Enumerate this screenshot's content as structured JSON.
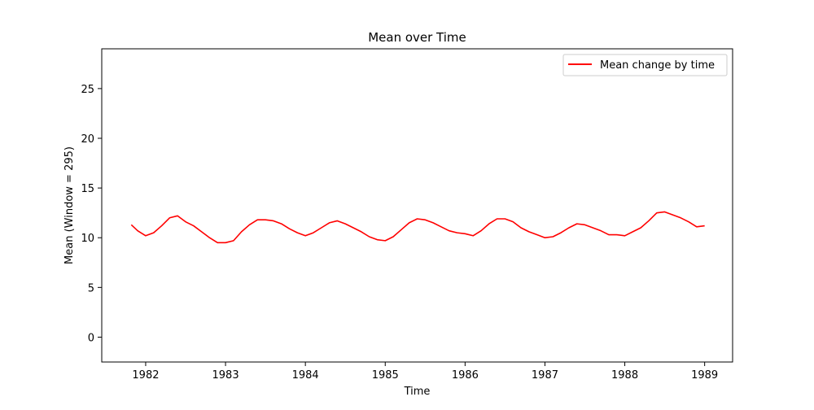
{
  "chart_data": {
    "type": "line",
    "title": "Mean over Time",
    "xlabel": "Time",
    "ylabel": "Mean (Window = 295)",
    "xlim": [
      1981.45,
      1989.35
    ],
    "ylim": [
      -2.5,
      29.0
    ],
    "x_ticks": [
      1982,
      1983,
      1984,
      1985,
      1986,
      1987,
      1988,
      1989
    ],
    "y_ticks": [
      0,
      5,
      10,
      15,
      20,
      25
    ],
    "grid": false,
    "legend": {
      "position": "top-right"
    },
    "series": [
      {
        "name": "Mean change by time",
        "color": "#ff0000",
        "x": [
          1981.82,
          1981.9,
          1982.0,
          1982.1,
          1982.2,
          1982.3,
          1982.4,
          1982.5,
          1982.6,
          1982.7,
          1982.8,
          1982.9,
          1983.0,
          1983.1,
          1983.2,
          1983.3,
          1983.4,
          1983.5,
          1983.6,
          1983.7,
          1983.8,
          1983.9,
          1984.0,
          1984.1,
          1984.2,
          1984.3,
          1984.4,
          1984.5,
          1984.6,
          1984.7,
          1984.8,
          1984.9,
          1985.0,
          1985.1,
          1985.2,
          1985.3,
          1985.4,
          1985.5,
          1985.6,
          1985.7,
          1985.8,
          1985.9,
          1986.0,
          1986.1,
          1986.2,
          1986.3,
          1986.4,
          1986.5,
          1986.6,
          1986.7,
          1986.8,
          1986.9,
          1987.0,
          1987.1,
          1987.2,
          1987.3,
          1987.4,
          1987.5,
          1987.6,
          1987.7,
          1987.8,
          1987.9,
          1988.0,
          1988.1,
          1988.2,
          1988.3,
          1988.4,
          1988.5,
          1988.6,
          1988.7,
          1988.8,
          1988.9,
          1989.0
        ],
        "y": [
          11.3,
          10.7,
          10.2,
          10.5,
          11.2,
          12.0,
          12.2,
          11.6,
          11.2,
          10.6,
          10.0,
          9.5,
          9.5,
          9.7,
          10.6,
          11.3,
          11.8,
          11.8,
          11.7,
          11.4,
          10.9,
          10.5,
          10.2,
          10.5,
          11.0,
          11.5,
          11.7,
          11.4,
          11.0,
          10.6,
          10.1,
          9.8,
          9.7,
          10.1,
          10.8,
          11.5,
          11.9,
          11.8,
          11.5,
          11.1,
          10.7,
          10.5,
          10.4,
          10.2,
          10.7,
          11.4,
          11.9,
          11.9,
          11.6,
          11.0,
          10.6,
          10.3,
          10.0,
          10.1,
          10.5,
          11.0,
          11.4,
          11.3,
          11.0,
          10.7,
          10.3,
          10.3,
          10.2,
          10.6,
          11.0,
          11.7,
          12.5,
          12.6,
          12.3,
          12.0,
          11.6,
          11.1,
          11.2
        ]
      }
    ]
  }
}
